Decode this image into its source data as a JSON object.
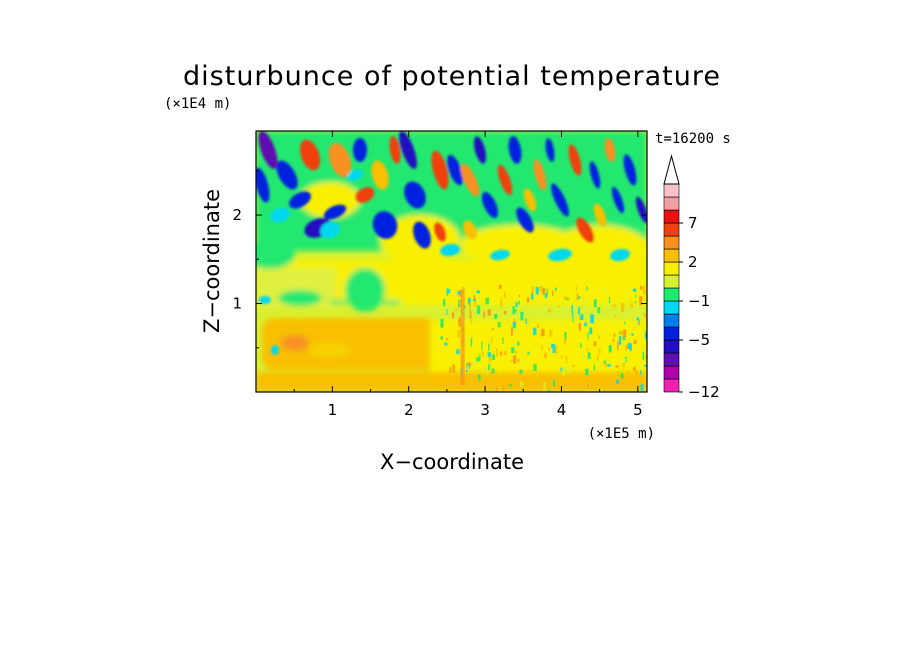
{
  "chart_data": {
    "type": "heatmap",
    "title": "disturbunce of potential temperature",
    "xlabel": "X−coordinate",
    "ylabel": "Z−coordinate",
    "x_unit": "(×1E5 m)",
    "y_unit": "(×1E4 m)",
    "time_label": "t=16200 s",
    "xlim": [
      0,
      5.12
    ],
    "ylim": [
      0,
      2.95
    ],
    "xticks": [
      {
        "value": 1,
        "label": "1"
      },
      {
        "value": 2,
        "label": "2"
      },
      {
        "value": 3,
        "label": "3"
      },
      {
        "value": 4,
        "label": "4"
      },
      {
        "value": 5,
        "label": "5"
      }
    ],
    "yticks": [
      {
        "value": 1,
        "label": "1"
      },
      {
        "value": 2,
        "label": "2"
      }
    ],
    "colorbar": {
      "levels": [
        -12,
        -10,
        -8,
        -6,
        -5,
        -4,
        -2,
        -1,
        0,
        1,
        2,
        4,
        6,
        7,
        9,
        11
      ],
      "colors": [
        "#f020b0",
        "#b000a8",
        "#6010b0",
        "#2010c0",
        "#0020e0",
        "#0080f0",
        "#00d8f0",
        "#20e870",
        "#d8f030",
        "#f8f000",
        "#f8c000",
        "#f89020",
        "#f04010",
        "#e81010",
        "#f0a0a0",
        "#f8c0c8"
      ],
      "extend_color": "#ffffff",
      "tick_labels": [
        {
          "level_index": 0,
          "label": "−12"
        },
        {
          "level_index": 4,
          "label": "−5"
        },
        {
          "level_index": 7,
          "label": "−1"
        },
        {
          "level_index": 10,
          "label": "2"
        },
        {
          "level_index": 13,
          "label": "7"
        }
      ]
    }
  }
}
